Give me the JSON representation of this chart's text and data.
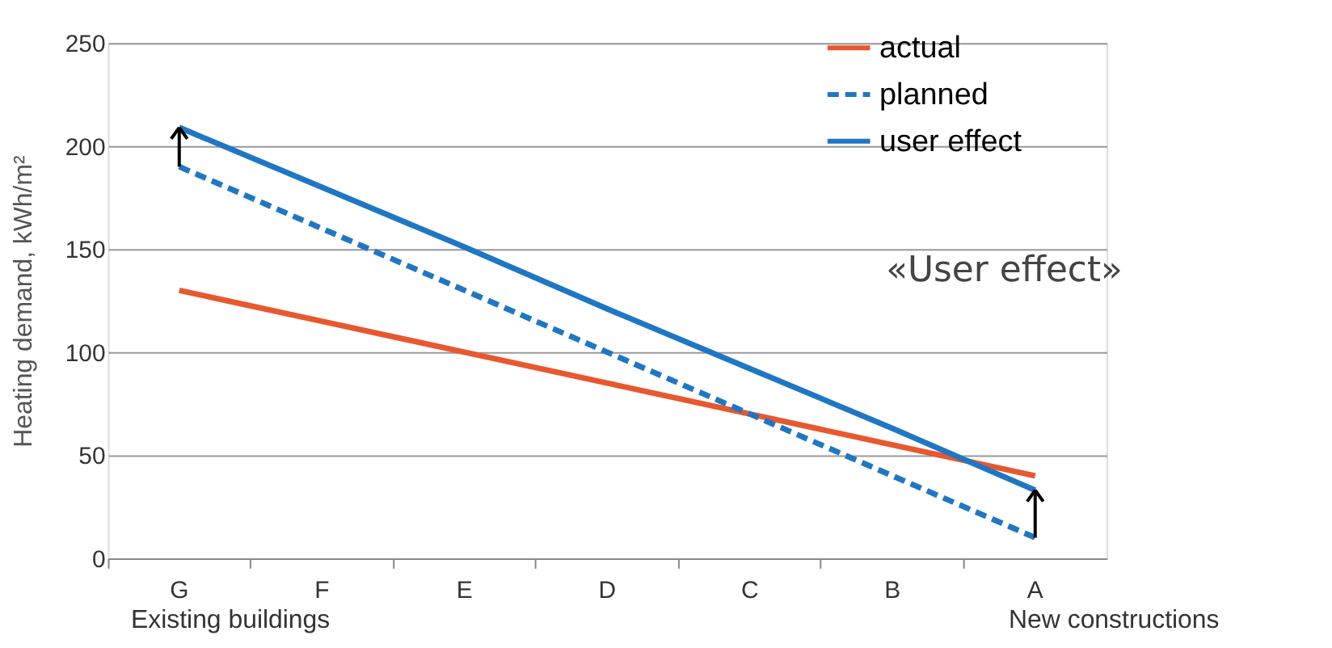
{
  "chart_data": {
    "type": "line",
    "ylabel": "Heating demand, kWh/m²",
    "categories": [
      "G",
      "F",
      "E",
      "D",
      "C",
      "B",
      "A"
    ],
    "series": [
      {
        "name": "actual",
        "color": "#e8582f",
        "line_style": "solid",
        "values": [
          130,
          115,
          100,
          85,
          70,
          55,
          40
        ]
      },
      {
        "name": "planned",
        "color": "#1f77c4",
        "line_style": "dashed",
        "values": [
          190,
          160,
          130,
          100,
          70,
          40,
          10
        ]
      },
      {
        "name": "user effect",
        "color": "#1f77c4",
        "line_style": "solid",
        "values": [
          209,
          180,
          151,
          121,
          92,
          63,
          33
        ]
      }
    ],
    "ylim": [
      0,
      250
    ],
    "yticks": [
      0,
      50,
      100,
      150,
      200,
      250
    ],
    "grid": "y",
    "legend": "top right",
    "annotations": [
      "«User effect»",
      "Existing buildings",
      "New constructions"
    ]
  }
}
